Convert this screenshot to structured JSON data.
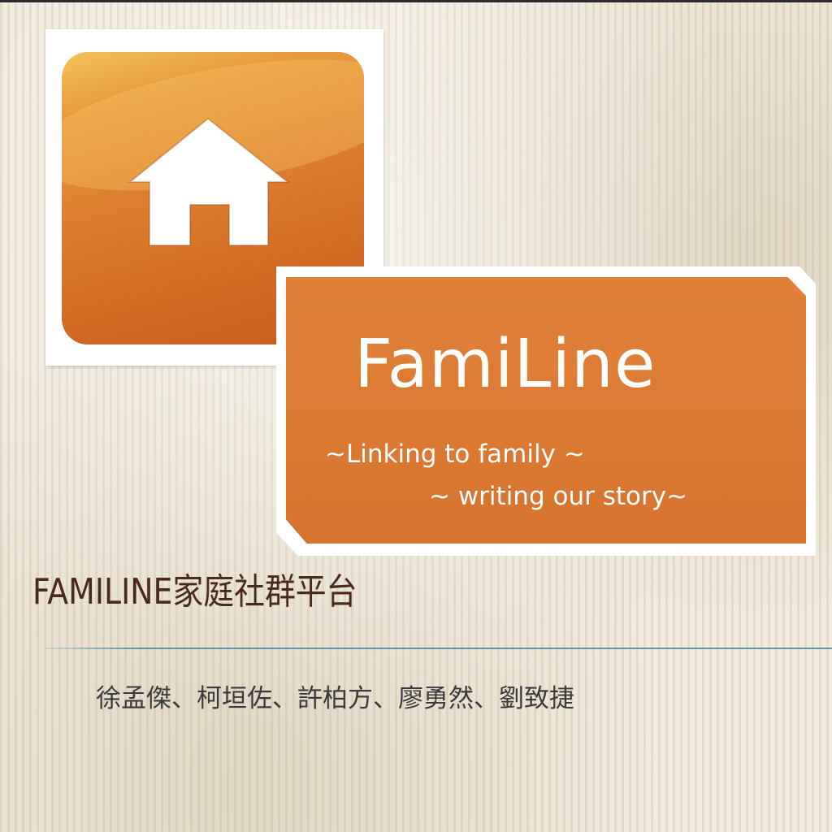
{
  "slide": {
    "logo": {
      "brand_name": "FamiLine",
      "tagline_line1": "~Linking to family ~",
      "tagline_line2": "~ writing our story~",
      "accent_color": "#dc7a34",
      "icon": "home-icon"
    },
    "title": "FAMILINE家庭社群平台",
    "authors": "徐孟傑、柯垣佐、許柏方、廖勇然、劉致捷"
  }
}
